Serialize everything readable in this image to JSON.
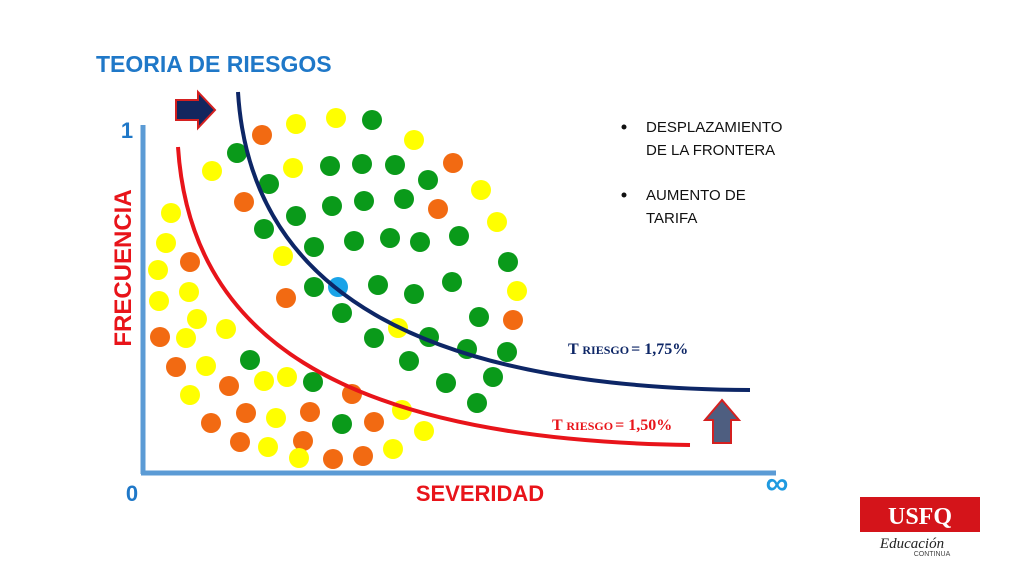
{
  "header": {
    "title": "TEORIA DE RIESGOS"
  },
  "axes": {
    "y_max": "1",
    "origin": "0",
    "y_label": "FRECUENCIA",
    "x_label": "SEVERIDAD",
    "x_max": "∞"
  },
  "bullets": [
    [
      "DESPLAZAMIENTO",
      "DE LA FRONTERA"
    ],
    [
      "AUMENTO DE",
      "TARIFA"
    ]
  ],
  "curves": [
    {
      "prefix": "T",
      "sub": "RIESGO",
      "rate": "= 1,75%"
    },
    {
      "prefix": "T",
      "sub": "RIESGO",
      "rate": "= 1,50%"
    }
  ],
  "logo": {
    "name": "USFQ",
    "line1": "Educación",
    "line2": "CONTINUA"
  }
}
